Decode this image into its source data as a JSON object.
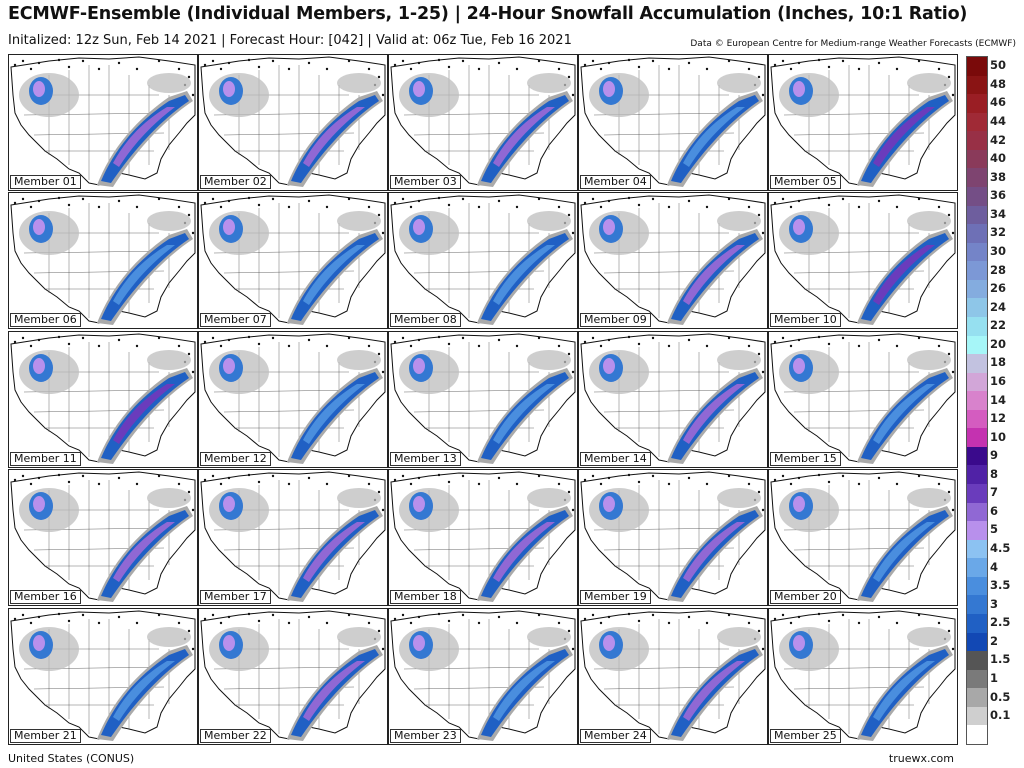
{
  "header": {
    "title": "ECMWF-Ensemble (Individual Members, 1-25) | 24-Hour Snowfall Accumulation (Inches, 10:1 Ratio)",
    "subtitle": "Initalized: 12z Sun, Feb 14 2021  |  Forecast Hour: [042]  |  Valid at: 06z Tue, Feb 16 2021",
    "credit": "Data © European Centre for Medium-range Weather Forecasts (ECMWF)"
  },
  "members": [
    {
      "label": "Member 01",
      "intensity": 3
    },
    {
      "label": "Member 02",
      "intensity": 3
    },
    {
      "label": "Member 03",
      "intensity": 3
    },
    {
      "label": "Member 04",
      "intensity": 2
    },
    {
      "label": "Member 05",
      "intensity": 4
    },
    {
      "label": "Member 06",
      "intensity": 2
    },
    {
      "label": "Member 07",
      "intensity": 2
    },
    {
      "label": "Member 08",
      "intensity": 2
    },
    {
      "label": "Member 09",
      "intensity": 3
    },
    {
      "label": "Member 10",
      "intensity": 4
    },
    {
      "label": "Member 11",
      "intensity": 4
    },
    {
      "label": "Member 12",
      "intensity": 2
    },
    {
      "label": "Member 13",
      "intensity": 2
    },
    {
      "label": "Member 14",
      "intensity": 3
    },
    {
      "label": "Member 15",
      "intensity": 2
    },
    {
      "label": "Member 16",
      "intensity": 3
    },
    {
      "label": "Member 17",
      "intensity": 3
    },
    {
      "label": "Member 18",
      "intensity": 3
    },
    {
      "label": "Member 19",
      "intensity": 3
    },
    {
      "label": "Member 20",
      "intensity": 2
    },
    {
      "label": "Member 21",
      "intensity": 2
    },
    {
      "label": "Member 22",
      "intensity": 3
    },
    {
      "label": "Member 23",
      "intensity": 2
    },
    {
      "label": "Member 24",
      "intensity": 3
    },
    {
      "label": "Member 25",
      "intensity": 2
    }
  ],
  "legend": [
    {
      "label": "50",
      "color": "#7a0a0a"
    },
    {
      "label": "48",
      "color": "#8a1414"
    },
    {
      "label": "46",
      "color": "#9a1e24"
    },
    {
      "label": "44",
      "color": "#a02a36"
    },
    {
      "label": "42",
      "color": "#983046"
    },
    {
      "label": "40",
      "color": "#8a3a5a"
    },
    {
      "label": "38",
      "color": "#7e4470"
    },
    {
      "label": "36",
      "color": "#744e86"
    },
    {
      "label": "34",
      "color": "#6e5e9e"
    },
    {
      "label": "32",
      "color": "#6e70b6"
    },
    {
      "label": "30",
      "color": "#7484c8"
    },
    {
      "label": "28",
      "color": "#7c98d6"
    },
    {
      "label": "26",
      "color": "#84acdf"
    },
    {
      "label": "24",
      "color": "#8ec6e8"
    },
    {
      "label": "22",
      "color": "#96e0f0"
    },
    {
      "label": "20",
      "color": "#a6f6f8"
    },
    {
      "label": "18",
      "color": "#c2c2e0"
    },
    {
      "label": "16",
      "color": "#d2a6d8"
    },
    {
      "label": "14",
      "color": "#d882cc"
    },
    {
      "label": "12",
      "color": "#d45cc0"
    },
    {
      "label": "10",
      "color": "#c432b0"
    },
    {
      "label": "9",
      "color": "#3a0a8c"
    },
    {
      "label": "8",
      "color": "#5022a6"
    },
    {
      "label": "7",
      "color": "#6a3cbc"
    },
    {
      "label": "6",
      "color": "#9068d4"
    },
    {
      "label": "5",
      "color": "#b890ec"
    },
    {
      "label": "4.5",
      "color": "#8cc2f2"
    },
    {
      "label": "4",
      "color": "#6aa8e8"
    },
    {
      "label": "3.5",
      "color": "#4a8ede"
    },
    {
      "label": "3",
      "color": "#3478d2"
    },
    {
      "label": "2.5",
      "color": "#2060c4"
    },
    {
      "label": "2",
      "color": "#1248b4"
    },
    {
      "label": "1.5",
      "color": "#555555"
    },
    {
      "label": "1",
      "color": "#7a7a7a"
    },
    {
      "label": "0.5",
      "color": "#a8a8a8"
    },
    {
      "label": "0.1",
      "color": "#cfcfcf"
    },
    {
      "label": "",
      "color": "#ffffff"
    }
  ],
  "footer": {
    "region": "United States (CONUS)",
    "brand": "truewx.com"
  }
}
